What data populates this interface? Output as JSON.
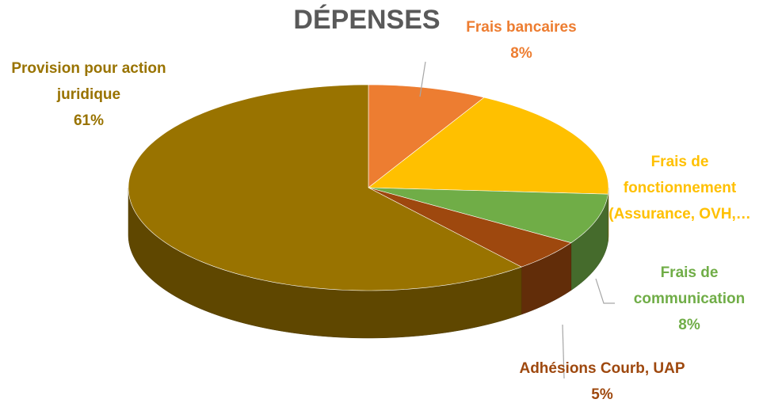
{
  "chart_data": {
    "type": "pie",
    "title": "DÉPENSES",
    "categories": [
      "Frais bancaires",
      "Frais de fonctionnement (Assurance, OVH,…",
      "Frais de communication",
      "Adhésions Courb, UAP",
      "Provision pour action juridique"
    ],
    "values": [
      8,
      18,
      8,
      5,
      61
    ],
    "value_labels": [
      "8%",
      null,
      "8%",
      "5%",
      "61%"
    ],
    "colors": [
      "#ED7D31",
      "#FFC000",
      "#70AD47",
      "#9E480E",
      "#997300"
    ],
    "three_d": true
  }
}
